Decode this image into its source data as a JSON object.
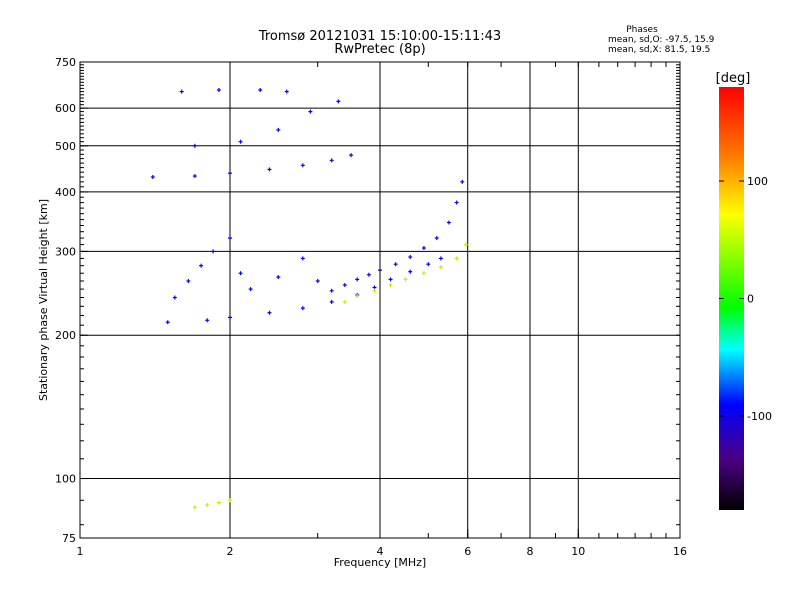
{
  "chart_data": {
    "type": "scatter",
    "title": "Tromsø 20121031 15:10:00-15:11:43",
    "subtitle": "RwPretec (8p)",
    "xlabel": "Frequency [MHz]",
    "ylabel": "Stationary phase Virtual Height [km]",
    "x_scale": "log",
    "y_scale": "log",
    "xlim": [
      1,
      16
    ],
    "ylim": [
      75,
      750
    ],
    "x_ticks": [
      1,
      2,
      4,
      6,
      8,
      10,
      16
    ],
    "x_tick_labels": [
      "1",
      "2",
      "4",
      "6",
      "8",
      "10",
      "16"
    ],
    "x_gridlines": [
      2,
      4,
      6,
      8,
      10
    ],
    "y_ticks": [
      75,
      100,
      200,
      300,
      400,
      500,
      600,
      750
    ],
    "y_tick_labels": [
      "75",
      "100",
      "200",
      "300",
      "400",
      "500",
      "600",
      "750"
    ],
    "y_gridlines": [
      100,
      200,
      300,
      400,
      500,
      600
    ],
    "grid": true,
    "stats": {
      "heading": "Phases",
      "line_o": "mean, sd,O: -97.5, 15.9",
      "line_x": "mean, sd,X:  81.5, 19.5"
    },
    "colorbar": {
      "label": "[deg]",
      "min": -180,
      "max": 180,
      "ticks": [
        100,
        0,
        -100
      ],
      "tick_labels": [
        "100",
        "0",
        "-100"
      ],
      "colors": [
        "#ff0000",
        "#ff8000",
        "#ffff00",
        "#00ff00",
        "#00ffff",
        "#0000ff",
        "#000000"
      ]
    },
    "series": [
      {
        "trace": "o-trace-low",
        "phase": -100,
        "points": [
          [
            1.5,
            213
          ],
          [
            1.8,
            215
          ],
          [
            2.0,
            218
          ],
          [
            2.4,
            223
          ],
          [
            2.8,
            228
          ],
          [
            3.2,
            235
          ],
          [
            3.6,
            243
          ],
          [
            3.9,
            252
          ],
          [
            4.2,
            262
          ],
          [
            4.6,
            272
          ],
          [
            5.0,
            282
          ],
          [
            5.3,
            290
          ]
        ]
      },
      {
        "trace": "o-trace-mid",
        "phase": -105,
        "points": [
          [
            3.2,
            248
          ],
          [
            3.4,
            255
          ],
          [
            3.6,
            262
          ],
          [
            3.8,
            268
          ],
          [
            4.0,
            274
          ],
          [
            4.3,
            282
          ],
          [
            4.6,
            292
          ],
          [
            4.9,
            305
          ],
          [
            5.2,
            320
          ],
          [
            5.5,
            345
          ],
          [
            5.7,
            380
          ],
          [
            5.85,
            420
          ]
        ]
      },
      {
        "trace": "x-trace-mid",
        "phase": 95,
        "points": [
          [
            3.4,
            235
          ],
          [
            3.6,
            242
          ],
          [
            3.9,
            248
          ],
          [
            4.2,
            255
          ],
          [
            4.5,
            262
          ],
          [
            4.9,
            270
          ],
          [
            5.3,
            278
          ],
          [
            5.7,
            290
          ],
          [
            5.95,
            310
          ]
        ]
      },
      {
        "trace": "o-trace-upper",
        "phase": -110,
        "points": [
          [
            1.4,
            430
          ],
          [
            1.7,
            432
          ],
          [
            2.0,
            438
          ],
          [
            2.4,
            446
          ],
          [
            2.8,
            455
          ],
          [
            3.2,
            466
          ],
          [
            3.5,
            478
          ]
        ]
      },
      {
        "trace": "o-spread-top",
        "phase": -95,
        "points": [
          [
            1.6,
            650
          ],
          [
            1.9,
            655
          ],
          [
            2.3,
            655
          ],
          [
            2.6,
            650
          ],
          [
            1.7,
            500
          ],
          [
            2.1,
            510
          ],
          [
            2.5,
            540
          ],
          [
            2.9,
            590
          ],
          [
            3.3,
            620
          ]
        ]
      },
      {
        "trace": "o-spread-low",
        "phase": -100,
        "points": [
          [
            1.55,
            240
          ],
          [
            1.65,
            260
          ],
          [
            1.75,
            280
          ],
          [
            1.85,
            300
          ],
          [
            2.0,
            320
          ],
          [
            2.1,
            270
          ],
          [
            2.2,
            250
          ],
          [
            2.5,
            265
          ],
          [
            2.8,
            290
          ],
          [
            3.0,
            260
          ]
        ]
      },
      {
        "trace": "x-ghost-low",
        "phase": 95,
        "points": [
          [
            1.7,
            87
          ],
          [
            1.8,
            88
          ],
          [
            1.9,
            89
          ],
          [
            2.0,
            90
          ]
        ]
      }
    ]
  }
}
